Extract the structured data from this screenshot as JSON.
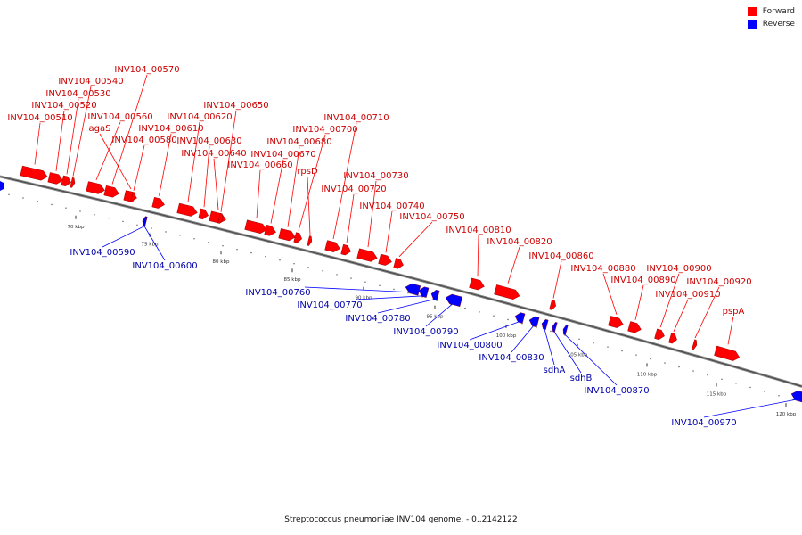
{
  "legend": {
    "forward": {
      "label": "Forward",
      "color": "#ff0000"
    },
    "reverse": {
      "label": "Reverse",
      "color": "#0000ff"
    }
  },
  "caption": "Streptococcus pneumoniae INV104 genome. - 0..2142122",
  "colors": {
    "forward_label": "#cc0000",
    "reverse_label": "#0000aa",
    "backbone": "#888888"
  },
  "ticks": [
    "70 kbp",
    "75 kbp",
    "80 kbp",
    "85 kbp",
    "90 kbp",
    "95 kbp",
    "100 kbp",
    "105 kbp",
    "110 kbp",
    "115 kbp",
    "120 kbp"
  ],
  "forward_features": [
    "INV104_00510",
    "INV104_00520",
    "INV104_00530",
    "INV104_00540",
    "INV104_00560",
    "INV104_00570",
    "agaS",
    "INV104_00580",
    "INV104_00610",
    "INV104_00620",
    "INV104_00630",
    "INV104_00640",
    "INV104_00650",
    "INV104_00660",
    "INV104_00670",
    "INV104_00680",
    "INV104_00700",
    "rpsD",
    "INV104_00710",
    "INV104_00720",
    "INV104_00730",
    "INV104_00740",
    "INV104_00750",
    "INV104_00810",
    "INV104_00820",
    "INV104_00860",
    "INV104_00880",
    "INV104_00890",
    "INV104_00900",
    "INV104_00910",
    "INV104_00920",
    "pspA"
  ],
  "reverse_features": [
    "INV104_00590",
    "INV104_00600",
    "INV104_00760",
    "INV104_00770",
    "INV104_00780",
    "INV104_00790",
    "INV104_00800",
    "INV104_00830",
    "sdhA",
    "sdhB",
    "INV104_00870",
    "INV104_00970"
  ]
}
